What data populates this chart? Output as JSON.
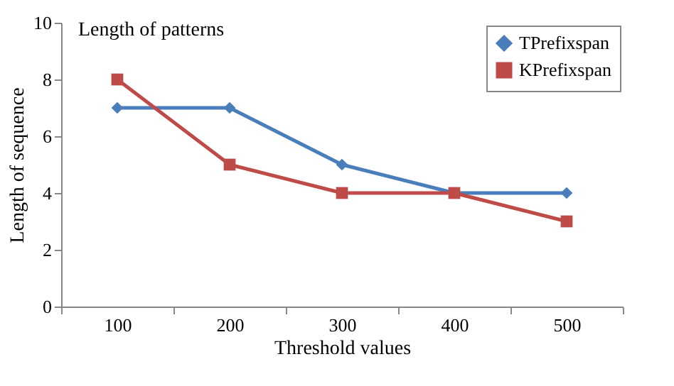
{
  "chart_data": {
    "type": "line",
    "title": "Length of patterns",
    "xlabel": "Threshold values",
    "ylabel": "Length of sequence",
    "categories": [
      "100",
      "200",
      "300",
      "400",
      "500"
    ],
    "ylim": [
      0,
      10
    ],
    "yticks": [
      0,
      2,
      4,
      6,
      8,
      10
    ],
    "grid": false,
    "legend": "top right",
    "series": [
      {
        "name": "TPrefixspan",
        "color": "#4a7ebb",
        "marker": "diamond",
        "values": [
          7,
          7,
          5,
          4,
          4
        ]
      },
      {
        "name": "KPrefixspan",
        "color": "#be4b48",
        "marker": "square",
        "values": [
          8,
          5,
          4,
          4,
          3
        ]
      }
    ]
  }
}
